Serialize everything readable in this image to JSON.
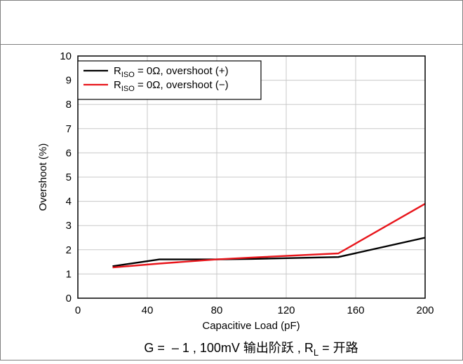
{
  "chart_data": {
    "type": "line",
    "title": "",
    "xlabel": "Capacitive Load (pF)",
    "ylabel": "Overshoot (%)",
    "xlim": [
      0,
      200
    ],
    "ylim": [
      0,
      10
    ],
    "xticks": [
      0,
      40,
      80,
      120,
      160,
      200
    ],
    "yticks": [
      0,
      1,
      2,
      3,
      4,
      5,
      6,
      7,
      8,
      9,
      10
    ],
    "grid": true,
    "legend_position": "top-left",
    "series": [
      {
        "name_main": "R",
        "name_sub": "ISO",
        "name_rest": " = 0Ω, overshoot (+)",
        "color": "#000000",
        "x": [
          20,
          47,
          80,
          100,
          150,
          200
        ],
        "y": [
          1.32,
          1.6,
          1.6,
          1.62,
          1.7,
          2.5
        ]
      },
      {
        "name_main": "R",
        "name_sub": "ISO",
        "name_rest": " = 0Ω, overshoot (−)",
        "color": "#e8151b",
        "x": [
          20,
          47,
          80,
          100,
          150,
          200
        ],
        "y": [
          1.27,
          1.43,
          1.6,
          1.68,
          1.85,
          3.9
        ]
      }
    ],
    "caption": {
      "prefix": "G =  – 1 , 100mV 输出阶跃 , R",
      "sub": "L",
      "suffix": " = 开路"
    }
  }
}
